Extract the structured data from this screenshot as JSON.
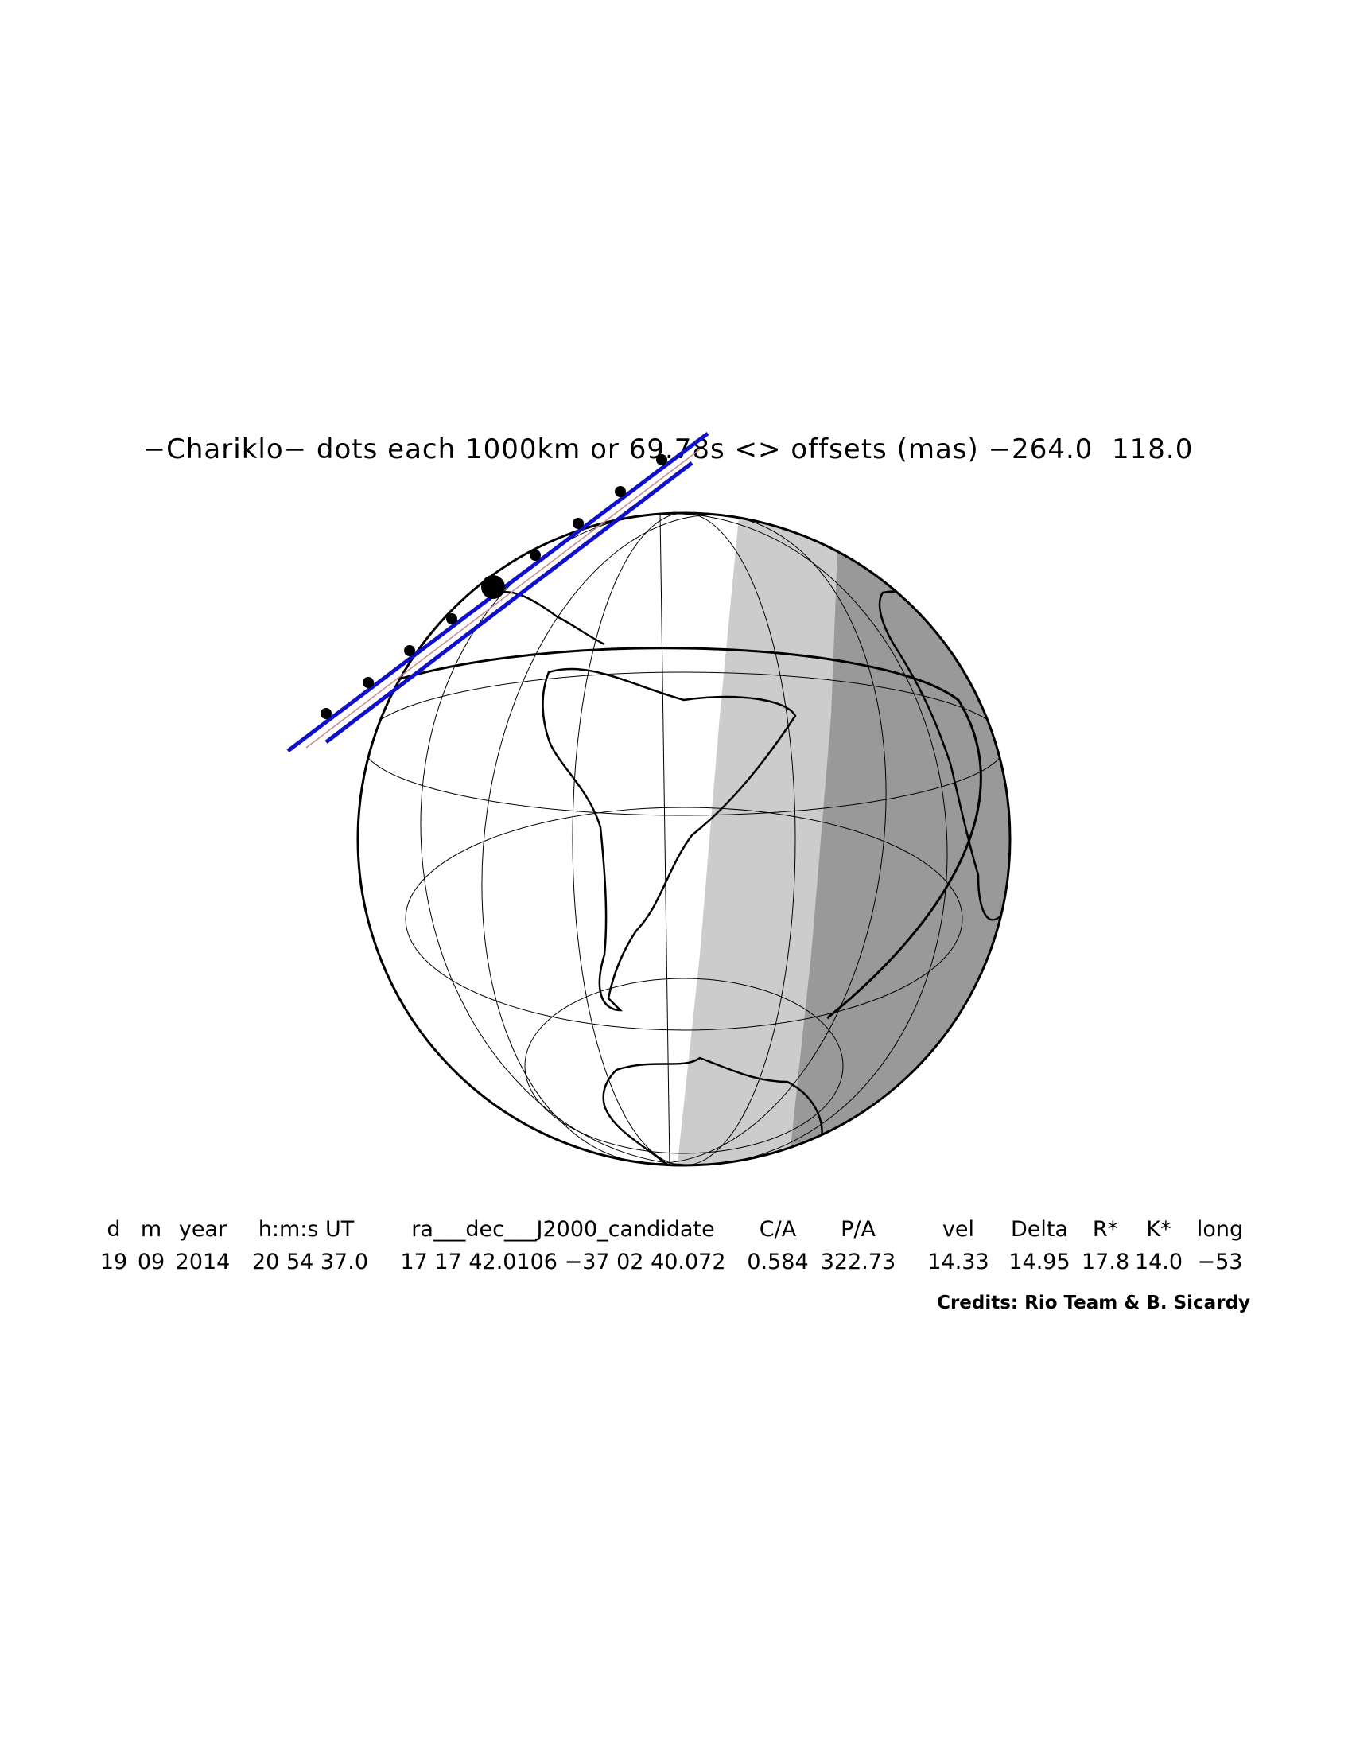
{
  "title": "−Chariklo− dots each 1000km or 69.78s <> offsets (mas) −264.0  118.0",
  "columns": [
    {
      "header": "d",
      "value": "19"
    },
    {
      "header": "m",
      "value": "09"
    },
    {
      "header": "year",
      "value": "2014"
    },
    {
      "header": "h:m:s UT",
      "value": "20 54 37.0"
    },
    {
      "header": "ra___dec___J2000_candidate",
      "value": "17 17 42.0106 −37 02 40.072"
    },
    {
      "header": "C/A",
      "value": "0.584"
    },
    {
      "header": "P/A",
      "value": "322.73"
    },
    {
      "header": "vel",
      "value": "14.33"
    },
    {
      "header": "Delta",
      "value": "14.95"
    },
    {
      "header": "R*",
      "value": "17.8"
    },
    {
      "header": "K*",
      "value": "14.0"
    },
    {
      "header": "long",
      "value": "−53"
    }
  ],
  "credits": "Credits: Rio Team & B. Sicardy",
  "colors": {
    "path_lines": "#1010cc",
    "dots": "#000000",
    "day": "#ffffff",
    "twilight": "#cccccc",
    "night": "#999999"
  },
  "map": {
    "projection": "orthographic",
    "visible_region": [
      "South America",
      "Antarctica",
      "Africa"
    ],
    "dot_count": 9
  }
}
